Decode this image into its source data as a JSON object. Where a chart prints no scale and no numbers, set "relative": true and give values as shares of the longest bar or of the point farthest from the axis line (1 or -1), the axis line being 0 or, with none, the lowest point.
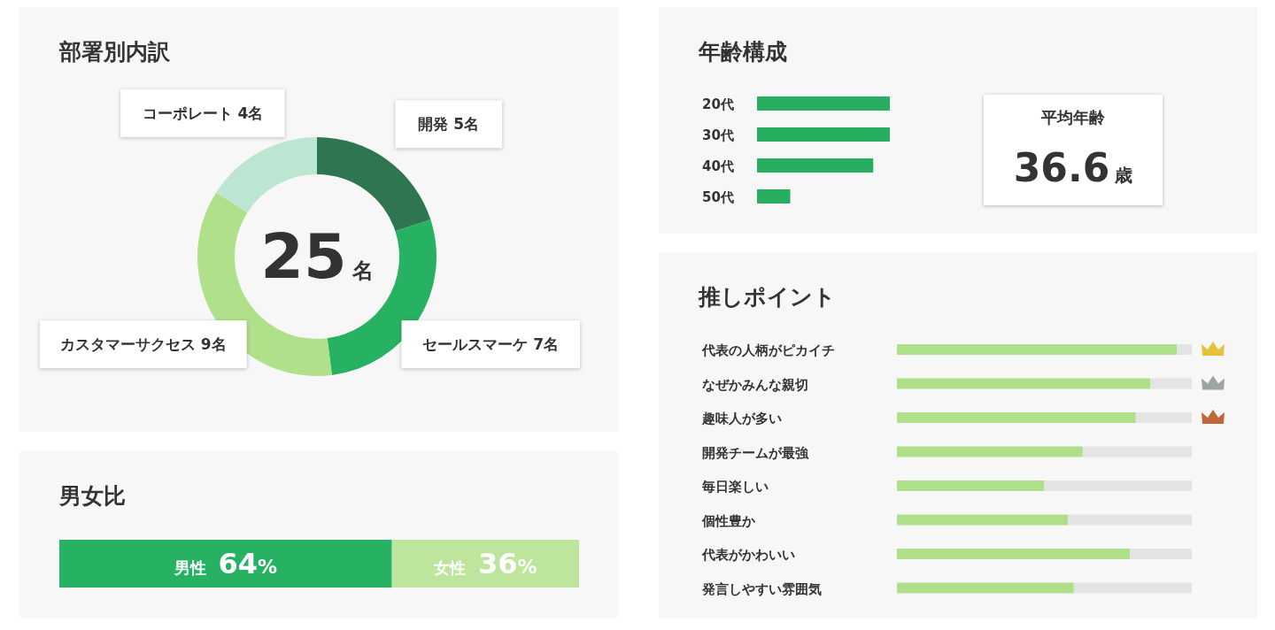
{
  "chart_data": [
    {
      "type": "donut",
      "title": "部署別内訳",
      "categories": [
        "開発",
        "セールスマーケ",
        "カスタマーサクセス",
        "コーポレート"
      ],
      "values": [
        5,
        7,
        9,
        4
      ],
      "value_labels": [
        "5名",
        "7名",
        "9名",
        "4名"
      ],
      "colors": [
        "#2e7550",
        "#27b263",
        "#b0e08a",
        "#bde6d2"
      ],
      "annotations": [
        "25名"
      ]
    },
    {
      "type": "bar",
      "orientation": "horizontal",
      "stacked": true,
      "title": "男女比",
      "categories": [
        null
      ],
      "xlim": [
        0,
        100
      ],
      "series": [
        {
          "name": "男性",
          "color": "#27b263",
          "values": [
            64
          ],
          "value_labels": [
            "64%"
          ]
        },
        {
          "name": "女性",
          "color": "#bde59b",
          "values": [
            36
          ],
          "value_labels": [
            "36%"
          ]
        }
      ]
    },
    {
      "type": "bar",
      "orientation": "horizontal",
      "relative": true,
      "title": "年齢構成",
      "categories": [
        "20代",
        "30代",
        "40代",
        "50代"
      ],
      "values": [
        1,
        1,
        0.875,
        0.25
      ],
      "color": "#27ae60"
    },
    {
      "type": "other",
      "title": "平均年齢",
      "annotations": [
        "36.6歳"
      ]
    },
    {
      "type": "bar",
      "orientation": "horizontal",
      "stacked": true,
      "relative": true,
      "title": "推しポイント",
      "categories": [
        "代表の人柄がピカイチ",
        "なぜかみんな親切",
        "趣味人が多い",
        "開発チームが最強",
        "毎日楽しい",
        "個性豊か",
        "代表がかわいい",
        "発言しやすい雰囲気"
      ],
      "series": [
        {
          "color": "#b0df8a",
          "values": [
            0.95,
            0.86,
            0.81,
            0.63,
            0.5,
            0.58,
            0.79,
            0.6
          ]
        },
        {
          "color": "#e4e4e4",
          "values": [
            0.05,
            0.14,
            0.19,
            0.37,
            0.5,
            0.42,
            0.21,
            0.4
          ]
        }
      ]
    }
  ]
}
